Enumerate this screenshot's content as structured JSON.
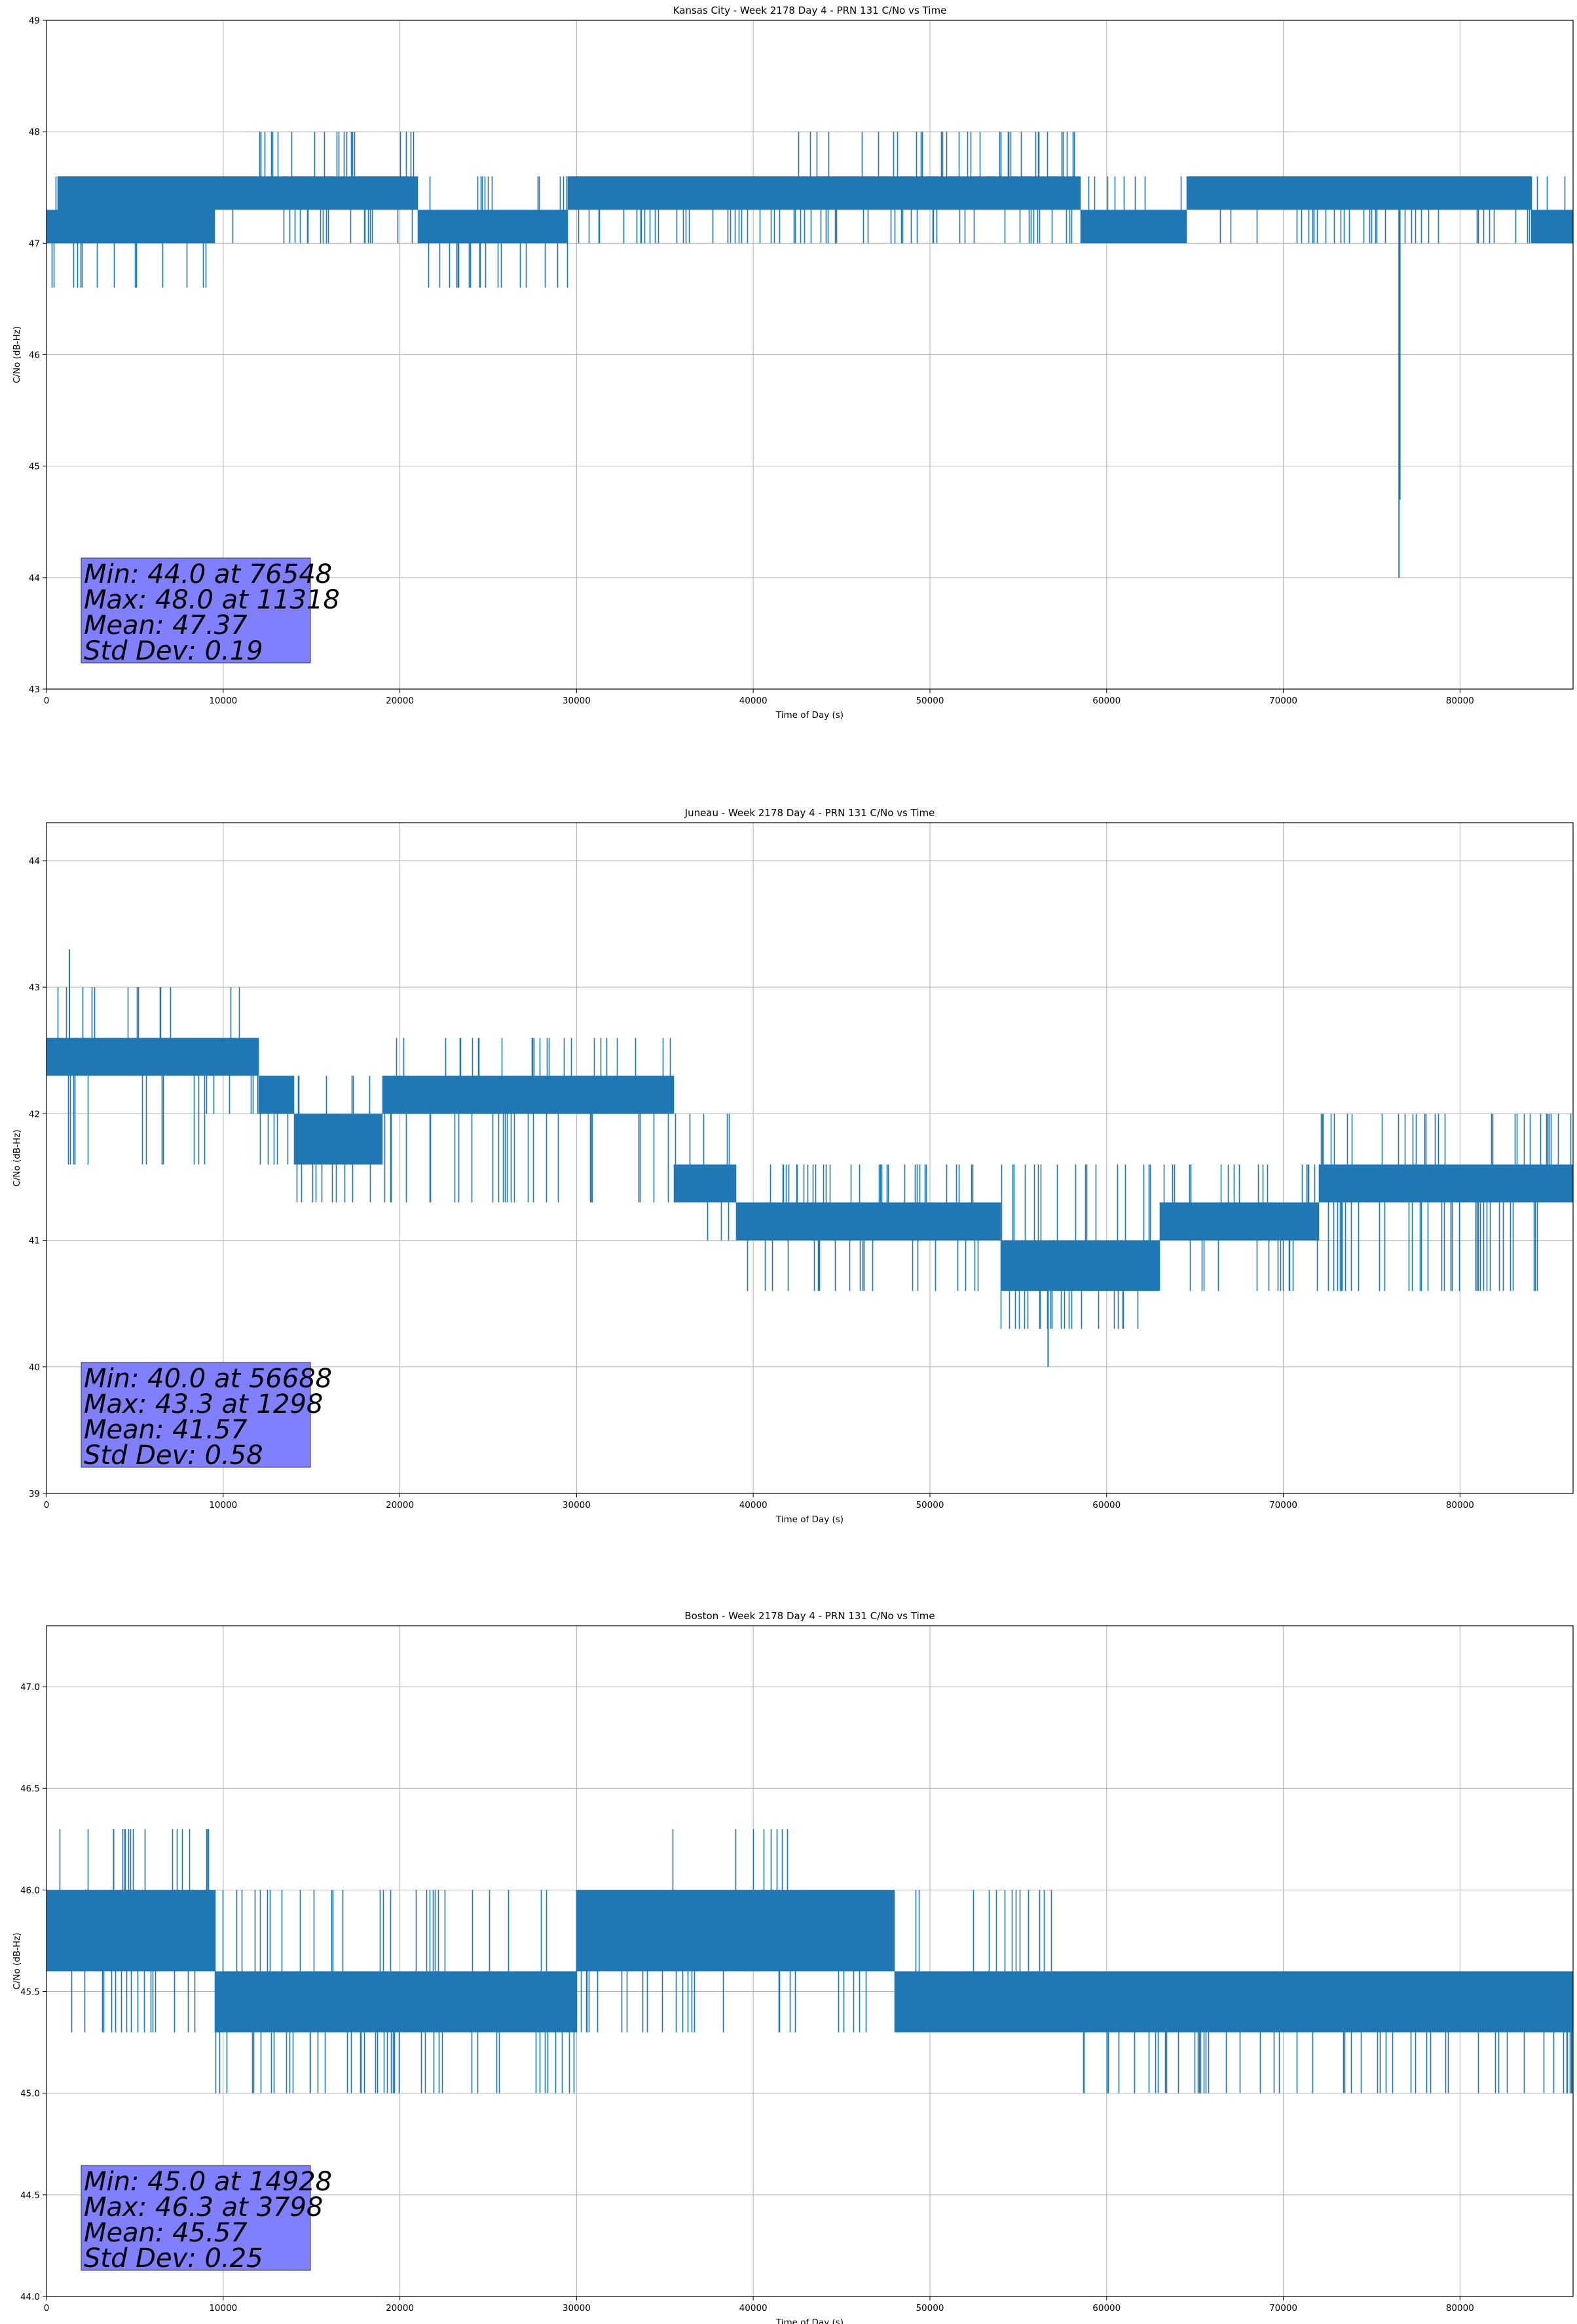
{
  "chart_data": [
    {
      "type": "line",
      "title": "Kansas City - Week 2178 Day 4 - PRN 131 C/No vs Time",
      "xlabel": "Time of Day (s)",
      "ylabel": "C/No (dB-Hz)",
      "xlim": [
        0,
        86400
      ],
      "ylim": [
        43,
        49
      ],
      "xticks": [
        0,
        10000,
        20000,
        30000,
        40000,
        50000,
        60000,
        70000,
        80000
      ],
      "yticks": [
        "43",
        "44",
        "45",
        "46",
        "47",
        "48",
        "49"
      ],
      "grid": true,
      "color": "#1f77b4",
      "stats": [
        "Min: 44.0 at 76548",
        "Max: 48.0 at 11318",
        "Mean: 47.37",
        "Std Dev: 0.19"
      ],
      "segments": [
        {
          "x0": 0,
          "x1": 600,
          "low": 47.0,
          "high": 47.3,
          "spike_low": 46.6,
          "spike_high": 47.6
        },
        {
          "x0": 600,
          "x1": 9500,
          "low": 47.0,
          "high": 47.6,
          "spike_low": 46.6,
          "spike_high": 47.6
        },
        {
          "x0": 9500,
          "x1": 21000,
          "low": 47.3,
          "high": 47.6,
          "spike_low": 47.0,
          "spike_high": 48.0
        },
        {
          "x0": 21000,
          "x1": 29500,
          "low": 47.0,
          "high": 47.3,
          "spike_low": 46.6,
          "spike_high": 47.6
        },
        {
          "x0": 29500,
          "x1": 42500,
          "low": 47.3,
          "high": 47.6,
          "spike_low": 47.0,
          "spike_high": 47.6
        },
        {
          "x0": 42500,
          "x1": 51000,
          "low": 47.3,
          "high": 47.6,
          "spike_low": 47.0,
          "spike_high": 48.0
        },
        {
          "x0": 51000,
          "x1": 58500,
          "low": 47.3,
          "high": 47.6,
          "spike_low": 47.0,
          "spike_high": 48.0
        },
        {
          "x0": 58500,
          "x1": 64500,
          "low": 47.0,
          "high": 47.3,
          "spike_low": 47.0,
          "spike_high": 47.6
        },
        {
          "x0": 64500,
          "x1": 84000,
          "low": 47.3,
          "high": 47.6,
          "spike_low": 47.0,
          "spike_high": 47.6
        },
        {
          "x0": 84000,
          "x1": 86400,
          "low": 47.0,
          "high": 47.3,
          "spike_low": 47.0,
          "spike_high": 47.6
        }
      ],
      "extremes": [
        {
          "x": 76548,
          "y": 44.0
        },
        {
          "x": 76600,
          "y": 44.7
        }
      ]
    },
    {
      "type": "line",
      "title": "Juneau - Week 2178 Day 4 - PRN 131 C/No vs Time",
      "xlabel": "Time of Day (s)",
      "ylabel": "C/No (dB-Hz)",
      "xlim": [
        0,
        86400
      ],
      "ylim": [
        39,
        44.3
      ],
      "xticks": [
        0,
        10000,
        20000,
        30000,
        40000,
        50000,
        60000,
        70000,
        80000
      ],
      "yticks": [
        "39",
        "40",
        "41",
        "42",
        "43",
        "44"
      ],
      "grid": true,
      "color": "#1f77b4",
      "stats": [
        "Min: 40.0 at 56688",
        "Max: 43.3 at 1298",
        "Mean: 41.57",
        "Std Dev: 0.58"
      ],
      "segments": [
        {
          "x0": 0,
          "x1": 9000,
          "low": 42.3,
          "high": 42.6,
          "spike_low": 41.6,
          "spike_high": 43.0
        },
        {
          "x0": 9000,
          "x1": 12000,
          "low": 42.3,
          "high": 42.6,
          "spike_low": 42.0,
          "spike_high": 43.0
        },
        {
          "x0": 12000,
          "x1": 14000,
          "low": 42.0,
          "high": 42.3,
          "spike_low": 41.6,
          "spike_high": 42.3
        },
        {
          "x0": 14000,
          "x1": 19000,
          "low": 41.6,
          "high": 42.0,
          "spike_low": 41.3,
          "spike_high": 42.3
        },
        {
          "x0": 19000,
          "x1": 35500,
          "low": 42.0,
          "high": 42.3,
          "spike_low": 41.3,
          "spike_high": 42.6
        },
        {
          "x0": 35500,
          "x1": 39000,
          "low": 41.3,
          "high": 41.6,
          "spike_low": 41.0,
          "spike_high": 42.0
        },
        {
          "x0": 39000,
          "x1": 54000,
          "low": 41.0,
          "high": 41.3,
          "spike_low": 40.6,
          "spike_high": 41.6
        },
        {
          "x0": 54000,
          "x1": 63000,
          "low": 40.6,
          "high": 41.0,
          "spike_low": 40.3,
          "spike_high": 41.6
        },
        {
          "x0": 63000,
          "x1": 72000,
          "low": 41.0,
          "high": 41.3,
          "spike_low": 40.6,
          "spike_high": 41.6
        },
        {
          "x0": 72000,
          "x1": 86400,
          "low": 41.3,
          "high": 41.6,
          "spike_low": 40.6,
          "spike_high": 42.0
        }
      ],
      "extremes": [
        {
          "x": 1298,
          "y": 43.3
        },
        {
          "x": 56688,
          "y": 40.0
        }
      ]
    },
    {
      "type": "line",
      "title": "Boston - Week 2178 Day 4 - PRN 131 C/No vs Time",
      "xlabel": "Time of Day (s)",
      "ylabel": "C/No (dB-Hz)",
      "xlim": [
        0,
        86400
      ],
      "ylim": [
        44.0,
        47.3
      ],
      "xticks": [
        0,
        10000,
        20000,
        30000,
        40000,
        50000,
        60000,
        70000,
        80000
      ],
      "yticks": [
        "44.0",
        "44.5",
        "45.0",
        "45.5",
        "46.0",
        "46.5",
        "47.0"
      ],
      "grid": true,
      "color": "#1f77b4",
      "stats": [
        "Min: 45.0 at 14928",
        "Max: 46.3 at 3798",
        "Mean: 45.57",
        "Std Dev: 0.25"
      ],
      "segments": [
        {
          "x0": 0,
          "x1": 9500,
          "low": 45.6,
          "high": 46.0,
          "spike_low": 45.3,
          "spike_high": 46.3
        },
        {
          "x0": 9500,
          "x1": 30000,
          "low": 45.3,
          "high": 45.6,
          "spike_low": 45.0,
          "spike_high": 46.0
        },
        {
          "x0": 30000,
          "x1": 35000,
          "low": 45.6,
          "high": 46.0,
          "spike_low": 45.3,
          "spike_high": 46.0
        },
        {
          "x0": 35000,
          "x1": 42000,
          "low": 45.6,
          "high": 46.0,
          "spike_low": 45.3,
          "spike_high": 46.3
        },
        {
          "x0": 42000,
          "x1": 48000,
          "low": 45.6,
          "high": 46.0,
          "spike_low": 45.3,
          "spike_high": 46.0
        },
        {
          "x0": 48000,
          "x1": 58000,
          "low": 45.3,
          "high": 45.6,
          "spike_low": 45.3,
          "spike_high": 46.0
        },
        {
          "x0": 58000,
          "x1": 86400,
          "low": 45.3,
          "high": 45.6,
          "spike_low": 45.0,
          "spike_high": 45.6
        }
      ],
      "extremes": [
        {
          "x": 3798,
          "y": 46.3
        },
        {
          "x": 14928,
          "y": 45.0
        }
      ]
    }
  ]
}
